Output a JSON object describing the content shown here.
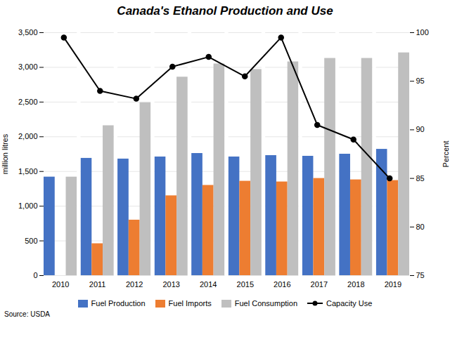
{
  "chart_data": {
    "type": "bar",
    "title": "Canada's Ethanol Production and Use",
    "caption": "Source: USDA",
    "ylabel": "million litres",
    "y2label": "Percent",
    "categories": [
      "2010",
      "2011",
      "2012",
      "2013",
      "2014",
      "2015",
      "2016",
      "2017",
      "2018",
      "2019"
    ],
    "series": [
      {
        "name": "Fuel Production",
        "color": "#4472C4",
        "values": [
          1420,
          1690,
          1680,
          1710,
          1760,
          1710,
          1730,
          1720,
          1750,
          1820
        ]
      },
      {
        "name": "Fuel Imports",
        "color": "#ED7D31",
        "values": [
          0,
          460,
          800,
          1150,
          1300,
          1360,
          1350,
          1400,
          1380,
          1370
        ]
      },
      {
        "name": "Fuel Consumption",
        "color": "#BFBFBF",
        "values": [
          1420,
          2160,
          2490,
          2860,
          3050,
          2970,
          3080,
          3130,
          3130,
          3210
        ]
      },
      {
        "name": "Capacity Use",
        "type": "line",
        "axis": "y2",
        "color": "#000000",
        "marker": "circle",
        "values": [
          99.5,
          94.0,
          93.2,
          96.5,
          97.5,
          95.5,
          99.5,
          90.5,
          89.0,
          85.0
        ]
      }
    ],
    "ylim": [
      0,
      3500
    ],
    "yticks": [
      0,
      500,
      {
        "value": 1000,
        "label": "1,000"
      },
      {
        "value": 1500,
        "label": "1,500"
      },
      {
        "value": 2000,
        "label": "2,000"
      },
      {
        "value": 2500,
        "label": "2,500"
      },
      {
        "value": 3000,
        "label": "3,000"
      },
      {
        "value": 3500,
        "label": "3,500"
      }
    ],
    "y2lim": [
      75,
      100
    ],
    "y2ticks": [
      75,
      80,
      85,
      90,
      95,
      100
    ],
    "grid": true,
    "legend": "bottom"
  }
}
